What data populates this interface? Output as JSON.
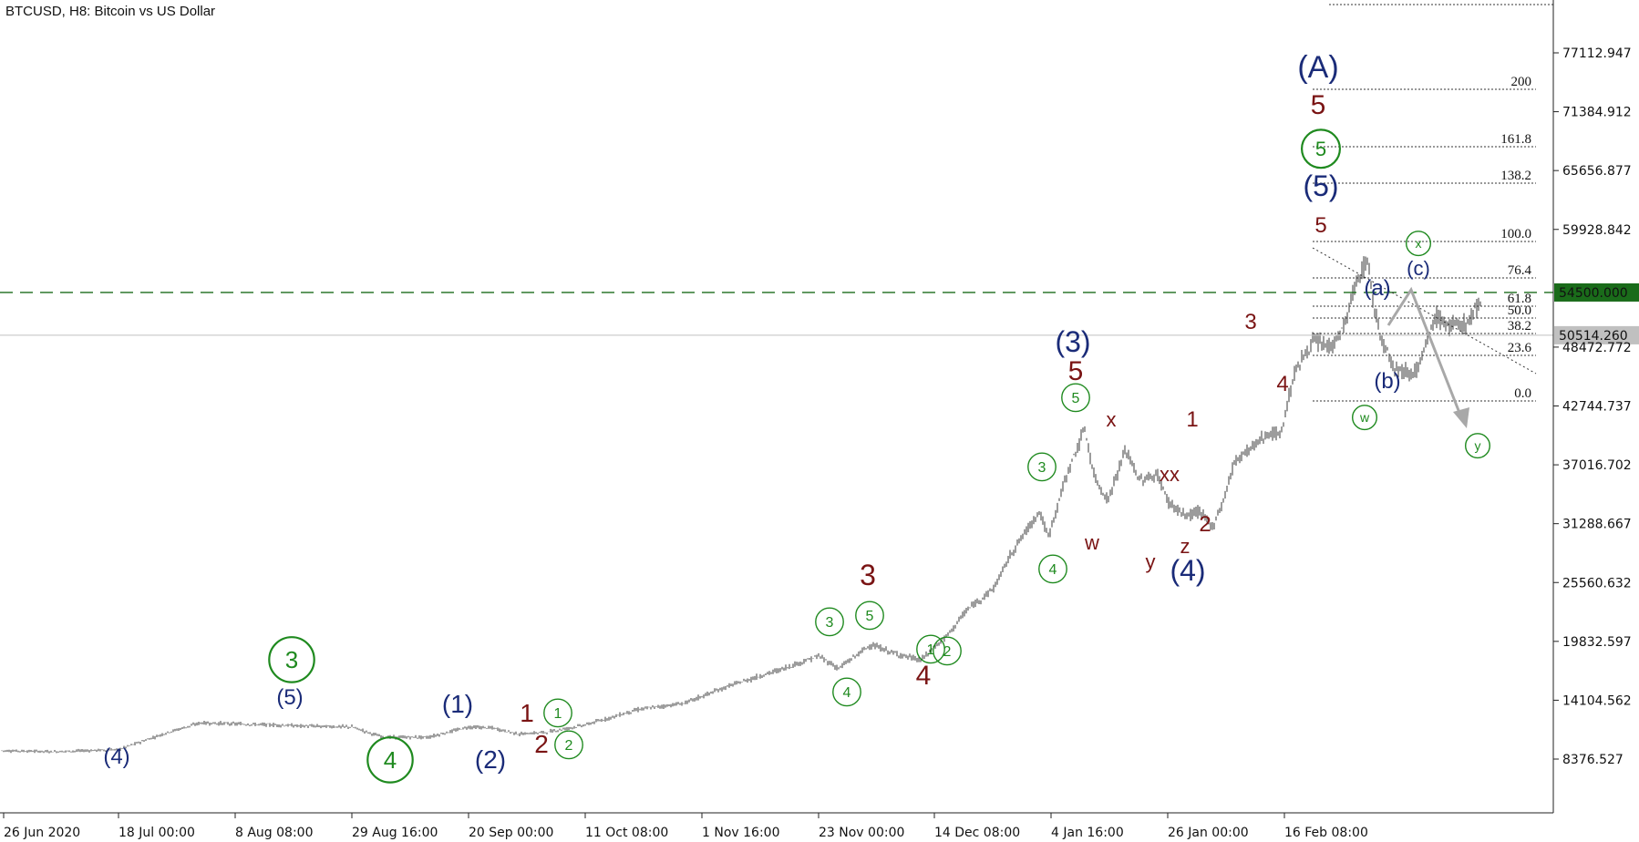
{
  "title": "BTCUSD, H8:  Bitcoin vs US Dollar",
  "chart_data": {
    "type": "candlestick",
    "symbol": "BTCUSD",
    "timeframe": "H8",
    "title": "BTCUSD, H8:  Bitcoin vs US Dollar",
    "ylim": [
      2650,
      82800
    ],
    "y_ticks": [
      "77112.947",
      "71384.912",
      "65656.877",
      "59928.842",
      "48472.772",
      "42744.737",
      "37016.702",
      "31288.667",
      "25560.632",
      "19832.597",
      "14104.562",
      "8376.527"
    ],
    "x_ticks": [
      "26 Jun 2020",
      "18 Jul 00:00",
      "8 Aug 08:00",
      "29 Aug 16:00",
      "20 Sep 00:00",
      "11 Oct 08:00",
      "1 Nov 16:00",
      "23 Nov 00:00",
      "14 Dec 08:00",
      "4 Jan 16:00",
      "26 Jan 00:00",
      "16 Feb 08:00"
    ],
    "price_path": [
      [
        "26 Jun 2020",
        9200
      ],
      [
        "18 Jul 00:00",
        9300
      ],
      [
        "8 Aug 08:00",
        11900
      ],
      [
        "29 Aug 16:00",
        11500
      ],
      [
        "20 Sep 00:00",
        10500
      ],
      [
        "11 Oct 08:00",
        11500
      ],
      [
        "1 Nov 16:00",
        13800
      ],
      [
        "23 Nov 00:00",
        18500
      ],
      [
        "14 Dec 08:00",
        19000
      ],
      [
        "4 Jan 16:00",
        41000
      ],
      [
        "26 Jan 00:00",
        31000
      ],
      [
        "16 Feb 08:00",
        58000
      ],
      [
        "16 Feb 08:00",
        44000
      ]
    ],
    "horizontal_lines": [
      {
        "price": 54500.0,
        "label": "54500.000",
        "style": "dashed",
        "color": "#1a6b1a"
      },
      {
        "price": 50514.26,
        "label": "50514.260",
        "style": "solid",
        "color": "#c0c0c0"
      }
    ],
    "fibonacci": {
      "levels": [
        "200",
        "161.8",
        "138.2",
        "100.0",
        "76.4",
        "61.8",
        "50.0",
        "38.2",
        "23.6",
        "0.0"
      ],
      "prices": [
        73900,
        68600,
        65300,
        60000,
        56800,
        54700,
        53100,
        51500,
        49500,
        46500
      ]
    },
    "forecast": {
      "points": [
        [
          53000,
          0
        ],
        [
          56100,
          1
        ],
        [
          40700,
          2
        ]
      ],
      "color": "#a8a8a8"
    },
    "wave_labels": [
      {
        "text": "(4)",
        "color": "navy"
      },
      {
        "text": "(5)",
        "color": "navy"
      },
      {
        "text": "3",
        "color": "green",
        "circled": true
      },
      {
        "text": "4",
        "color": "green",
        "circled": true
      },
      {
        "text": "(1)",
        "color": "navy"
      },
      {
        "text": "(2)",
        "color": "navy"
      },
      {
        "text": "1",
        "color": "maroon"
      },
      {
        "text": "2",
        "color": "maroon"
      },
      {
        "text": "1",
        "color": "green",
        "circled": true
      },
      {
        "text": "2",
        "color": "green",
        "circled": true
      },
      {
        "text": "3",
        "color": "maroon"
      },
      {
        "text": "3",
        "color": "green",
        "circled": true
      },
      {
        "text": "5",
        "color": "green",
        "circled": true
      },
      {
        "text": "4",
        "color": "green",
        "circled": true
      },
      {
        "text": "4",
        "color": "maroon"
      },
      {
        "text": "1",
        "color": "green",
        "circled": true
      },
      {
        "text": "2",
        "color": "green",
        "circled": true
      },
      {
        "text": "3",
        "color": "green",
        "circled": true
      },
      {
        "text": "4",
        "color": "green",
        "circled": true
      },
      {
        "text": "(3)",
        "color": "navy"
      },
      {
        "text": "5",
        "color": "maroon"
      },
      {
        "text": "5",
        "color": "green",
        "circled": true
      },
      {
        "text": "x",
        "color": "maroon"
      },
      {
        "text": "w",
        "color": "maroon"
      },
      {
        "text": "xx",
        "color": "maroon"
      },
      {
        "text": "y",
        "color": "maroon"
      },
      {
        "text": "z",
        "color": "maroon"
      },
      {
        "text": "(4)",
        "color": "navy"
      },
      {
        "text": "1",
        "color": "maroon"
      },
      {
        "text": "2",
        "color": "maroon"
      },
      {
        "text": "3",
        "color": "maroon"
      },
      {
        "text": "4",
        "color": "maroon"
      },
      {
        "text": "(A)",
        "color": "navy"
      },
      {
        "text": "5",
        "color": "maroon"
      },
      {
        "text": "5",
        "color": "green",
        "circled": true
      },
      {
        "text": "(5)",
        "color": "navy"
      },
      {
        "text": "5",
        "color": "maroon"
      },
      {
        "text": "(a)",
        "color": "navy"
      },
      {
        "text": "(b)",
        "color": "navy"
      },
      {
        "text": "w",
        "color": "green",
        "circled": true
      },
      {
        "text": "x",
        "color": "green",
        "circled": true
      },
      {
        "text": "(c)",
        "color": "navy"
      },
      {
        "text": "y",
        "color": "green",
        "circled": true
      }
    ],
    "grid": false
  }
}
